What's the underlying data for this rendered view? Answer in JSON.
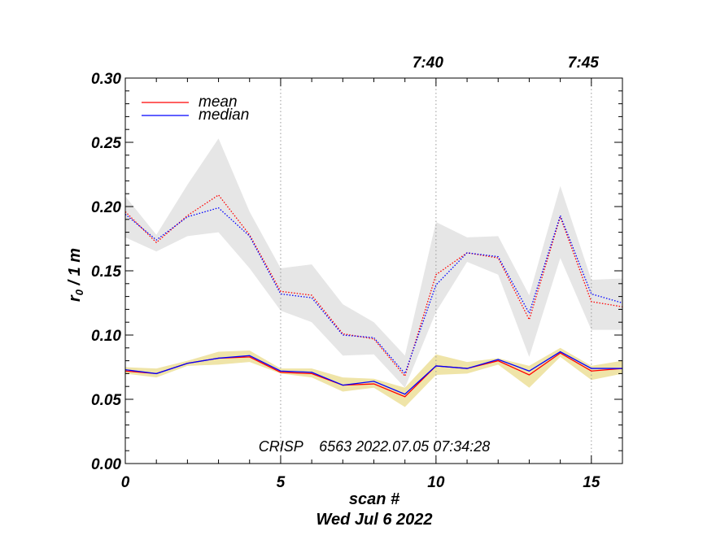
{
  "chart_data": {
    "type": "line",
    "xlabel": "scan #",
    "ylabel": "r₀ / 1 m",
    "ylabel_main": "r",
    "ylabel_sub": "0",
    "ylabel_rest": " / 1 m",
    "date_label": "Wed Jul  6 2022",
    "annotation": "CRISP    6563 2022.07.05 07:34:28",
    "xlim": [
      0,
      16
    ],
    "ylim": [
      0,
      0.3
    ],
    "x_ticks": [
      0,
      5,
      10,
      15
    ],
    "x_tick_labels": [
      "0",
      "5",
      "10",
      "15"
    ],
    "y_ticks": [
      0,
      0.05,
      0.1,
      0.15,
      0.2,
      0.25,
      0.3
    ],
    "y_tick_labels": [
      "0.00",
      "0.05",
      "0.10",
      "0.15",
      "0.20",
      "0.25",
      "0.30"
    ],
    "top_time_ticks": [
      {
        "x": 5,
        "label": ""
      },
      {
        "x": 10,
        "label": "7:40"
      },
      {
        "x": 15,
        "label": "7:45"
      }
    ],
    "legend": [
      {
        "name": "mean",
        "color": "#ff0000"
      },
      {
        "name": "median",
        "color": "#0000ff"
      }
    ],
    "x": [
      0,
      1,
      2,
      3,
      4,
      5,
      6,
      7,
      8,
      9,
      10,
      11,
      12,
      13,
      14,
      15,
      16
    ],
    "series": [
      {
        "name": "upper mean",
        "color": "#ff0000",
        "style": "dotted",
        "values": [
          0.196,
          0.172,
          0.193,
          0.209,
          0.178,
          0.134,
          0.131,
          0.101,
          0.097,
          0.068,
          0.147,
          0.164,
          0.16,
          0.112,
          0.192,
          0.126,
          0.122
        ]
      },
      {
        "name": "upper median",
        "color": "#0000ff",
        "style": "dotted",
        "values": [
          0.194,
          0.174,
          0.192,
          0.199,
          0.177,
          0.132,
          0.129,
          0.1,
          0.098,
          0.07,
          0.139,
          0.164,
          0.161,
          0.117,
          0.193,
          0.132,
          0.125
        ]
      },
      {
        "name": "lower mean",
        "color": "#ff0000",
        "style": "solid",
        "values": [
          0.072,
          0.07,
          0.078,
          0.082,
          0.083,
          0.071,
          0.07,
          0.061,
          0.062,
          0.052,
          0.076,
          0.074,
          0.08,
          0.069,
          0.086,
          0.072,
          0.074
        ]
      },
      {
        "name": "lower median",
        "color": "#0000ff",
        "style": "solid",
        "values": [
          0.073,
          0.07,
          0.078,
          0.082,
          0.084,
          0.072,
          0.071,
          0.061,
          0.064,
          0.054,
          0.076,
          0.074,
          0.081,
          0.072,
          0.087,
          0.074,
          0.074
        ]
      }
    ],
    "bands": [
      {
        "name": "upper spread",
        "color": "#e6e6e6",
        "upper": [
          0.208,
          0.178,
          0.217,
          0.253,
          0.196,
          0.152,
          0.155,
          0.124,
          0.11,
          0.084,
          0.188,
          0.176,
          0.177,
          0.131,
          0.216,
          0.143,
          0.144
        ],
        "lower": [
          0.176,
          0.165,
          0.177,
          0.18,
          0.152,
          0.119,
          0.11,
          0.084,
          0.085,
          0.059,
          0.118,
          0.157,
          0.147,
          0.083,
          0.16,
          0.104,
          0.104
        ]
      },
      {
        "name": "lower spread",
        "color": "#efe4a8",
        "upper": [
          0.075,
          0.074,
          0.08,
          0.087,
          0.088,
          0.074,
          0.074,
          0.067,
          0.066,
          0.059,
          0.085,
          0.079,
          0.082,
          0.076,
          0.09,
          0.076,
          0.08
        ],
        "lower": [
          0.07,
          0.067,
          0.076,
          0.077,
          0.079,
          0.07,
          0.067,
          0.056,
          0.059,
          0.044,
          0.069,
          0.07,
          0.077,
          0.059,
          0.083,
          0.065,
          0.07
        ]
      }
    ]
  }
}
